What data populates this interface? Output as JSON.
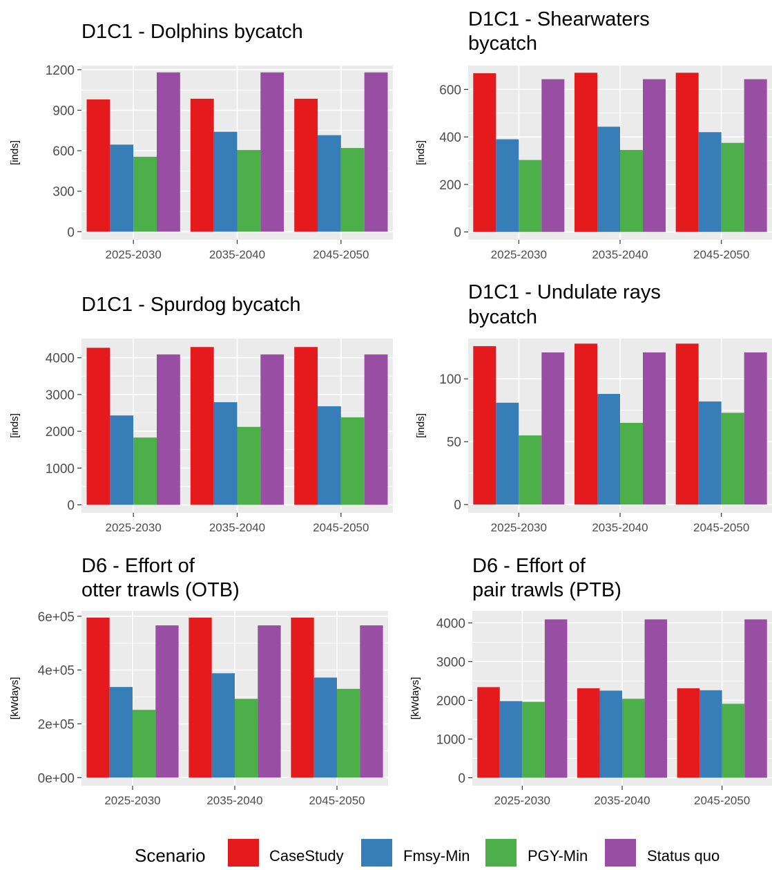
{
  "chart_data": [
    {
      "type": "bar",
      "title": [
        "D1C1 - Dolphins bycatch"
      ],
      "ylabel": "[inds]",
      "categories": [
        "2025-2030",
        "2035-2040",
        "2045-2050"
      ],
      "yticks": [
        "0",
        "300",
        "600",
        "900",
        "1200"
      ],
      "ytick_values": [
        0,
        300,
        600,
        900,
        1200
      ],
      "ylim": [
        -60,
        1230
      ],
      "series": [
        {
          "name": "CaseStudy",
          "values": [
            980,
            985,
            985
          ]
        },
        {
          "name": "Fmsy-Min",
          "values": [
            645,
            740,
            715
          ]
        },
        {
          "name": "PGY-Min",
          "values": [
            555,
            605,
            620
          ]
        },
        {
          "name": "Status quo",
          "values": [
            1180,
            1180,
            1180
          ]
        }
      ]
    },
    {
      "type": "bar",
      "title": [
        "D1C1 - Shearwaters",
        "bycatch"
      ],
      "ylabel": "[inds]",
      "categories": [
        "2025-2030",
        "2035-2040",
        "2045-2050"
      ],
      "yticks": [
        "0",
        "200",
        "400",
        "600"
      ],
      "ytick_values": [
        0,
        200,
        400,
        600
      ],
      "ylim": [
        -33,
        700
      ],
      "series": [
        {
          "name": "CaseStudy",
          "values": [
            668,
            670,
            670
          ]
        },
        {
          "name": "Fmsy-Min",
          "values": [
            390,
            443,
            420
          ]
        },
        {
          "name": "PGY-Min",
          "values": [
            303,
            345,
            375
          ]
        },
        {
          "name": "Status quo",
          "values": [
            643,
            643,
            643
          ]
        }
      ]
    },
    {
      "type": "bar",
      "title": [
        "D1C1 - Spurdog bycatch"
      ],
      "ylabel": "[inds]",
      "categories": [
        "2025-2030",
        "2035-2040",
        "2045-2050"
      ],
      "yticks": [
        "0",
        "1000",
        "2000",
        "3000",
        "4000"
      ],
      "ytick_values": [
        0,
        1000,
        2000,
        3000,
        4000
      ],
      "ylim": [
        -215,
        4520
      ],
      "series": [
        {
          "name": "CaseStudy",
          "values": [
            4270,
            4290,
            4290
          ]
        },
        {
          "name": "Fmsy-Min",
          "values": [
            2430,
            2790,
            2680
          ]
        },
        {
          "name": "PGY-Min",
          "values": [
            1830,
            2120,
            2380
          ]
        },
        {
          "name": "Status quo",
          "values": [
            4090,
            4090,
            4090
          ]
        }
      ]
    },
    {
      "type": "bar",
      "title": [
        "D1C1 - Undulate rays",
        "bycatch"
      ],
      "ylabel": "[inds]",
      "categories": [
        "2025-2030",
        "2035-2040",
        "2045-2050"
      ],
      "yticks": [
        "0",
        "50",
        "100"
      ],
      "ytick_values": [
        0,
        50,
        100
      ],
      "ylim": [
        -6.5,
        132
      ],
      "series": [
        {
          "name": "CaseStudy",
          "values": [
            126,
            128,
            128
          ]
        },
        {
          "name": "Fmsy-Min",
          "values": [
            81,
            88,
            82
          ]
        },
        {
          "name": "PGY-Min",
          "values": [
            55,
            65,
            73
          ]
        },
        {
          "name": "Status quo",
          "values": [
            121,
            121,
            121
          ]
        }
      ]
    },
    {
      "type": "bar",
      "title": [
        "D6 - Effort of",
        "otter trawls (OTB)"
      ],
      "ylabel": "[kWdays]",
      "categories": [
        "2025-2030",
        "2035-2040",
        "2045-2050"
      ],
      "yticks": [
        "0e+00",
        "2e+05",
        "4e+05",
        "6e+05"
      ],
      "ytick_values": [
        0,
        200000,
        400000,
        600000
      ],
      "ylim": [
        -30000,
        620000
      ],
      "series": [
        {
          "name": "CaseStudy",
          "values": [
            595000,
            595000,
            595000
          ]
        },
        {
          "name": "Fmsy-Min",
          "values": [
            337000,
            388000,
            372000
          ]
        },
        {
          "name": "PGY-Min",
          "values": [
            252000,
            293000,
            330000
          ]
        },
        {
          "name": "Status quo",
          "values": [
            566000,
            566000,
            566000
          ]
        }
      ]
    },
    {
      "type": "bar",
      "title": [
        "D6 - Effort of",
        "pair trawls (PTB)"
      ],
      "ylabel": "[kWdays]",
      "categories": [
        "2025-2030",
        "2035-2040",
        "2045-2050"
      ],
      "yticks": [
        "0",
        "1000",
        "2000",
        "3000",
        "4000"
      ],
      "ytick_values": [
        0,
        1000,
        2000,
        3000,
        4000
      ],
      "ylim": [
        -205,
        4310
      ],
      "series": [
        {
          "name": "CaseStudy",
          "values": [
            2340,
            2310,
            2310
          ]
        },
        {
          "name": "Fmsy-Min",
          "values": [
            1980,
            2250,
            2260
          ]
        },
        {
          "name": "PGY-Min",
          "values": [
            1960,
            2040,
            1910
          ]
        },
        {
          "name": "Status quo",
          "values": [
            4090,
            4090,
            4090
          ]
        }
      ]
    }
  ],
  "legend": {
    "title": "Scenario",
    "items": [
      {
        "label": "CaseStudy",
        "color": "#e41a1c"
      },
      {
        "label": "Fmsy-Min",
        "color": "#377eb8"
      },
      {
        "label": "PGY-Min",
        "color": "#4daf4a"
      },
      {
        "label": "Status quo",
        "color": "#984ea3"
      }
    ]
  },
  "colors": {
    "panel_background": "#ebebeb",
    "grid": "#ffffff"
  }
}
